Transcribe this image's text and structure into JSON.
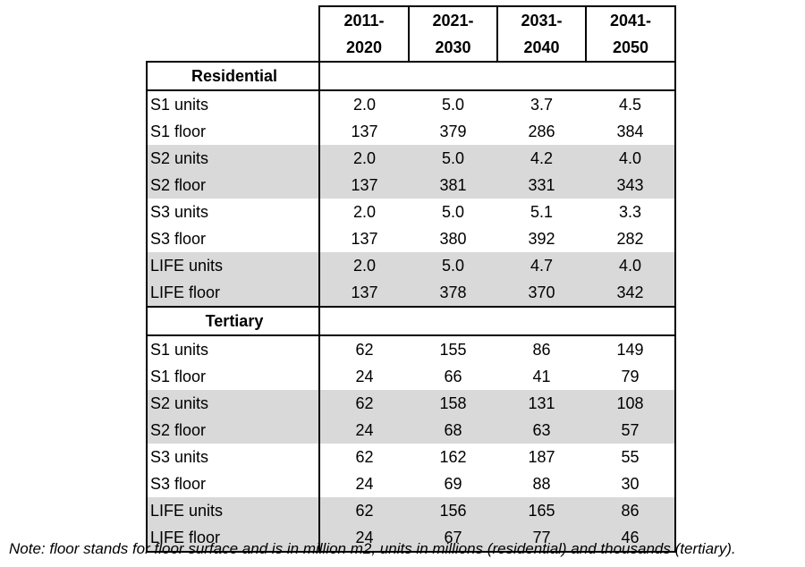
{
  "columns": [
    "2011-\n2020",
    "2021-\n2030",
    "2031-\n2040",
    "2041-\n2050"
  ],
  "sections": [
    {
      "title": "Residential",
      "rows": [
        {
          "label": "S1 units",
          "values": [
            "2.0",
            "5.0",
            "3.7",
            "4.5"
          ]
        },
        {
          "label": "S1 floor",
          "values": [
            "137",
            "379",
            "286",
            "384"
          ]
        },
        {
          "label": "S2 units",
          "values": [
            "2.0",
            "5.0",
            "4.2",
            "4.0"
          ]
        },
        {
          "label": "S2 floor",
          "values": [
            "137",
            "381",
            "331",
            "343"
          ]
        },
        {
          "label": "S3 units",
          "values": [
            "2.0",
            "5.0",
            "5.1",
            "3.3"
          ]
        },
        {
          "label": "S3 floor",
          "values": [
            "137",
            "380",
            "392",
            "282"
          ]
        },
        {
          "label": "LIFE units",
          "values": [
            "2.0",
            "5.0",
            "4.7",
            "4.0"
          ]
        },
        {
          "label": "LIFE floor",
          "values": [
            "137",
            "378",
            "370",
            "342"
          ]
        }
      ]
    },
    {
      "title": "Tertiary",
      "rows": [
        {
          "label": "S1 units",
          "values": [
            "62",
            "155",
            "86",
            "149"
          ]
        },
        {
          "label": "S1 floor",
          "values": [
            "24",
            "66",
            "41",
            "79"
          ]
        },
        {
          "label": "S2 units",
          "values": [
            "62",
            "158",
            "131",
            "108"
          ]
        },
        {
          "label": "S2 floor",
          "values": [
            "24",
            "68",
            "63",
            "57"
          ]
        },
        {
          "label": "S3 units",
          "values": [
            "62",
            "162",
            "187",
            "55"
          ]
        },
        {
          "label": "S3 floor",
          "values": [
            "24",
            "69",
            "88",
            "30"
          ]
        },
        {
          "label": "LIFE units",
          "values": [
            "62",
            "156",
            "165",
            "86"
          ]
        },
        {
          "label": "LIFE floor",
          "values": [
            "24",
            "67",
            "77",
            "46"
          ]
        }
      ]
    }
  ],
  "shading": {
    "row_color": "#d9d9d9"
  },
  "note": "Note: floor stands for floor surface and is in million m2, units in millions (residential) and thousands (tertiary)."
}
